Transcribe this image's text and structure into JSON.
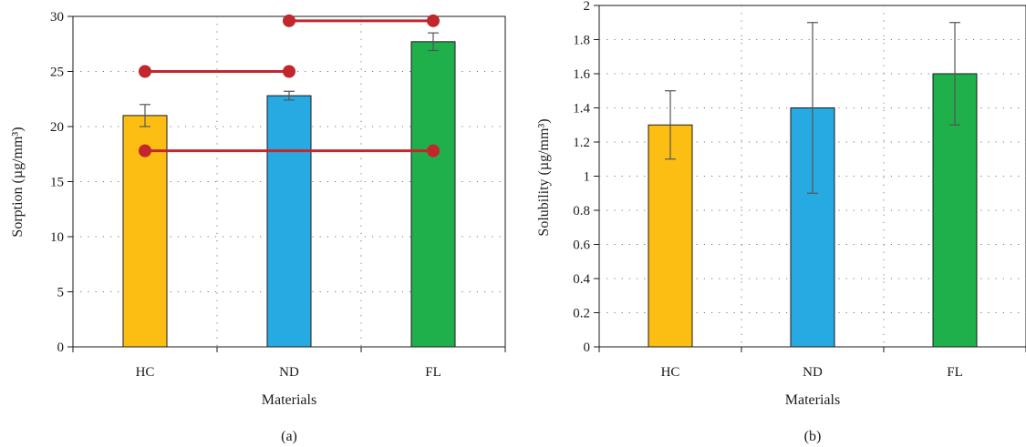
{
  "chart_data": [
    {
      "type": "bar",
      "panel_label": "(a)",
      "categories": [
        "HC",
        "ND",
        "FL"
      ],
      "values": [
        21.0,
        22.8,
        27.7
      ],
      "error_low": [
        20.0,
        22.4,
        26.9
      ],
      "error_high": [
        22.0,
        23.2,
        28.5
      ],
      "bar_colors": [
        "#fcbe12",
        "#26aae1",
        "#1fb04b"
      ],
      "xlabel": "Materials",
      "ylabel": "Sorption (µg/mm³)",
      "ylim": [
        0,
        30
      ],
      "yticks": [
        0,
        5,
        10,
        15,
        20,
        25,
        30
      ],
      "ytick_labels": [
        "0",
        "5",
        "10",
        "15",
        "20",
        "25",
        "30"
      ],
      "grid": true,
      "significance_brackets": [
        {
          "from": "HC",
          "to": "ND",
          "y": 25.0
        },
        {
          "from": "ND",
          "to": "FL",
          "y": 29.6
        },
        {
          "from": "HC",
          "to": "FL",
          "y": 17.8
        }
      ],
      "bracket_color": "#c1272d"
    },
    {
      "type": "bar",
      "panel_label": "(b)",
      "categories": [
        "HC",
        "ND",
        "FL"
      ],
      "values": [
        1.3,
        1.4,
        1.6
      ],
      "error_low": [
        1.1,
        0.9,
        1.3
      ],
      "error_high": [
        1.5,
        1.9,
        1.9
      ],
      "bar_colors": [
        "#fcbe12",
        "#26aae1",
        "#1fb04b"
      ],
      "xlabel": "Materials",
      "ylabel": "Solubility (µg/mm³)",
      "ylim": [
        0,
        2
      ],
      "yticks": [
        0,
        0.2,
        0.4,
        0.6,
        0.8,
        1.0,
        1.2,
        1.4,
        1.6,
        1.8,
        2.0
      ],
      "ytick_labels": [
        "0",
        "0.2",
        "0.4",
        "0.6",
        "0.8",
        "1",
        "1.2",
        "1.4",
        "1.6",
        "1.8",
        "2"
      ],
      "grid": true
    }
  ]
}
